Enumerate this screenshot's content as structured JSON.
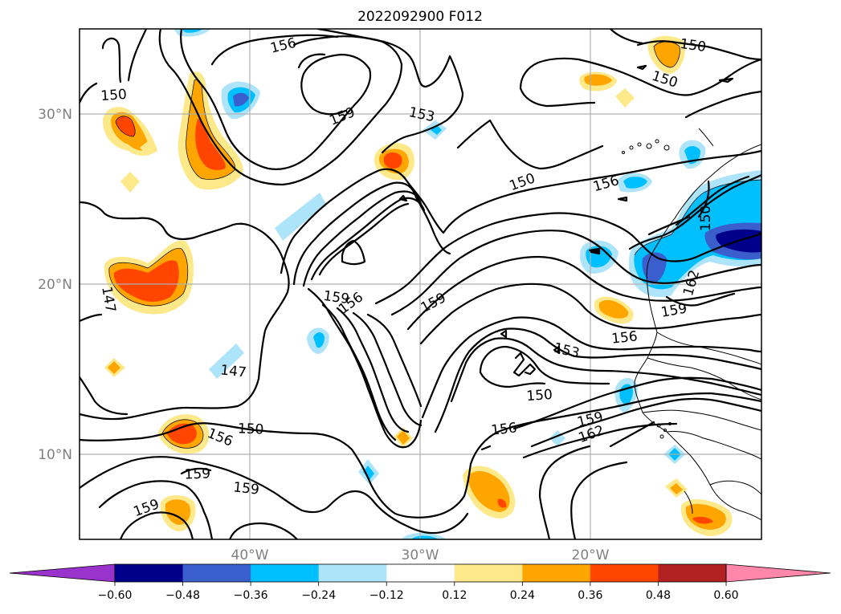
{
  "title": "2022092900 F012",
  "axes": {
    "lat_ticks": [
      "30°N",
      "20°N",
      "10°N"
    ],
    "lon_ticks": [
      "40°W",
      "30°W",
      "20°W"
    ]
  },
  "colorbar": {
    "ticks": [
      "−0.60",
      "−0.48",
      "−0.36",
      "−0.24",
      "−0.12",
      "0.12",
      "0.24",
      "0.36",
      "0.48",
      "0.60"
    ],
    "colors": [
      "#9933cc",
      "#00008b",
      "#3a5fcd",
      "#00bfff",
      "#aee4fa",
      "#ffffff",
      "#fde98a",
      "#ffa500",
      "#ff4500",
      "#b22222",
      "#ff88aa"
    ]
  },
  "contour_labels": [
    "150",
    "156",
    "150",
    "150",
    "159",
    "153",
    "150",
    "156",
    "150",
    "147",
    "159",
    "156",
    "159",
    "162",
    "159",
    "156",
    "153",
    "147",
    "150",
    "156",
    "150",
    "159",
    "162",
    "156",
    "159",
    "159",
    "159"
  ]
}
